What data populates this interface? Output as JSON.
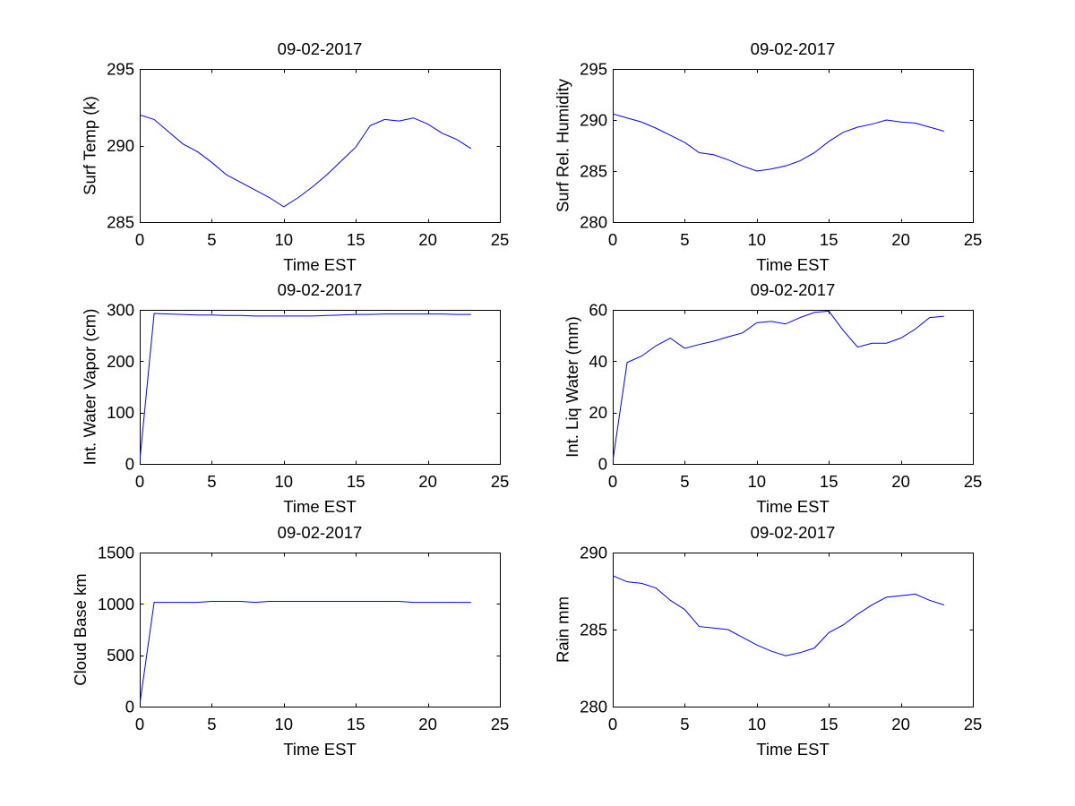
{
  "chart_data": [
    {
      "type": "line",
      "title": "09-02-2017",
      "xlabel": "Time EST",
      "ylabel": "Surf Temp (k)",
      "xlim": [
        0,
        25
      ],
      "ylim": [
        285,
        295
      ],
      "xticks": [
        0,
        5,
        10,
        15,
        20,
        25
      ],
      "yticks": [
        285,
        290,
        295
      ],
      "grid": false,
      "series": [
        {
          "name": "Surf Temp (k)",
          "color": "#0000ff",
          "x": [
            0,
            1,
            2,
            3,
            4,
            5,
            6,
            7,
            8,
            9,
            10,
            11,
            12,
            13,
            14,
            15,
            16,
            17,
            18,
            19,
            20,
            21,
            22,
            23
          ],
          "values": [
            292.0,
            291.7,
            290.9,
            290.1,
            289.6,
            288.9,
            288.1,
            287.6,
            287.1,
            286.6,
            286.0,
            286.6,
            287.3,
            288.1,
            289.0,
            289.9,
            291.3,
            291.7,
            291.6,
            291.8,
            291.4,
            290.8,
            290.4,
            289.8
          ]
        }
      ]
    },
    {
      "type": "line",
      "title": "09-02-2017",
      "xlabel": "Time EST",
      "ylabel": "Surf Rel. Humidity",
      "xlim": [
        0,
        25
      ],
      "ylim": [
        280,
        295
      ],
      "xticks": [
        0,
        5,
        10,
        15,
        20,
        25
      ],
      "yticks": [
        280,
        285,
        290,
        295
      ],
      "grid": false,
      "series": [
        {
          "name": "Surf Rel. Humidity",
          "color": "#0000ff",
          "x": [
            0,
            1,
            2,
            3,
            4,
            5,
            6,
            7,
            8,
            9,
            10,
            11,
            12,
            13,
            14,
            15,
            16,
            17,
            18,
            19,
            20,
            21,
            22,
            23
          ],
          "values": [
            290.6,
            290.2,
            289.8,
            289.2,
            288.5,
            287.8,
            286.8,
            286.6,
            286.1,
            285.5,
            285.0,
            285.2,
            285.5,
            286.0,
            286.8,
            287.9,
            288.8,
            289.3,
            289.6,
            290.0,
            289.8,
            289.7,
            289.3,
            288.9
          ]
        }
      ]
    },
    {
      "type": "line",
      "title": "09-02-2017",
      "xlabel": "Time EST",
      "ylabel": "Int. Water Vapor (cm)",
      "xlim": [
        0,
        25
      ],
      "ylim": [
        0,
        300
      ],
      "xticks": [
        0,
        5,
        10,
        15,
        20,
        25
      ],
      "yticks": [
        0,
        100,
        200,
        300
      ],
      "grid": false,
      "series": [
        {
          "name": "Int. Water Vapor (cm)",
          "color": "#0000ff",
          "x": [
            0,
            1,
            2,
            3,
            4,
            5,
            6,
            7,
            8,
            9,
            10,
            11,
            12,
            13,
            14,
            15,
            16,
            17,
            18,
            19,
            20,
            21,
            22,
            23
          ],
          "values": [
            5,
            293,
            292,
            291,
            290,
            290,
            289,
            289,
            288,
            288,
            288,
            288,
            288,
            289,
            290,
            291,
            291,
            292,
            292,
            292,
            292,
            292,
            291,
            291
          ]
        }
      ]
    },
    {
      "type": "line",
      "title": "09-02-2017",
      "xlabel": "Time EST",
      "ylabel": "Int. Liq Water (mm)",
      "xlim": [
        0,
        25
      ],
      "ylim": [
        0,
        60
      ],
      "xticks": [
        0,
        5,
        10,
        15,
        20,
        25
      ],
      "yticks": [
        0,
        20,
        40,
        60
      ],
      "grid": false,
      "series": [
        {
          "name": "Int. Liq Water (mm)",
          "color": "#0000ff",
          "x": [
            0,
            1,
            2,
            3,
            4,
            5,
            6,
            7,
            8,
            9,
            10,
            11,
            12,
            13,
            14,
            15,
            16,
            17,
            18,
            19,
            20,
            21,
            22,
            23
          ],
          "values": [
            1,
            39.5,
            42,
            46,
            49,
            45,
            46.5,
            47.8,
            49.5,
            51,
            55,
            55.5,
            54.5,
            57,
            59,
            59.5,
            52,
            45.5,
            47,
            47,
            49,
            52.5,
            57,
            57.5
          ]
        }
      ]
    },
    {
      "type": "line",
      "title": "09-02-2017",
      "xlabel": "Time EST",
      "ylabel": "Cloud Base km",
      "xlim": [
        0,
        25
      ],
      "ylim": [
        0,
        1500
      ],
      "xticks": [
        0,
        5,
        10,
        15,
        20,
        25
      ],
      "yticks": [
        0,
        500,
        1000,
        1500
      ],
      "grid": false,
      "series": [
        {
          "name": "Cloud Base km",
          "color": "#0000ff",
          "x": [
            0,
            1,
            2,
            3,
            4,
            5,
            6,
            7,
            8,
            9,
            10,
            11,
            12,
            13,
            14,
            15,
            16,
            17,
            18,
            19,
            20,
            21,
            22,
            23
          ],
          "values": [
            20,
            1015,
            1015,
            1015,
            1015,
            1025,
            1025,
            1025,
            1015,
            1025,
            1025,
            1025,
            1025,
            1025,
            1025,
            1025,
            1025,
            1025,
            1025,
            1015,
            1015,
            1015,
            1015,
            1015
          ]
        }
      ]
    },
    {
      "type": "line",
      "title": "09-02-2017",
      "xlabel": "Time EST",
      "ylabel": "Rain mm",
      "xlim": [
        0,
        25
      ],
      "ylim": [
        280,
        290
      ],
      "xticks": [
        0,
        5,
        10,
        15,
        20,
        25
      ],
      "yticks": [
        280,
        285,
        290
      ],
      "grid": false,
      "series": [
        {
          "name": "Rain mm",
          "color": "#0000ff",
          "x": [
            0,
            1,
            2,
            3,
            4,
            5,
            6,
            7,
            8,
            9,
            10,
            11,
            12,
            13,
            14,
            15,
            16,
            17,
            18,
            19,
            20,
            21,
            22,
            23
          ],
          "values": [
            288.5,
            288.1,
            288.0,
            287.7,
            286.9,
            286.3,
            285.2,
            285.1,
            285.0,
            284.5,
            284.0,
            283.6,
            283.3,
            283.5,
            283.8,
            284.8,
            285.3,
            286.0,
            286.6,
            287.1,
            287.2,
            287.3,
            286.9,
            286.6
          ]
        }
      ]
    }
  ]
}
